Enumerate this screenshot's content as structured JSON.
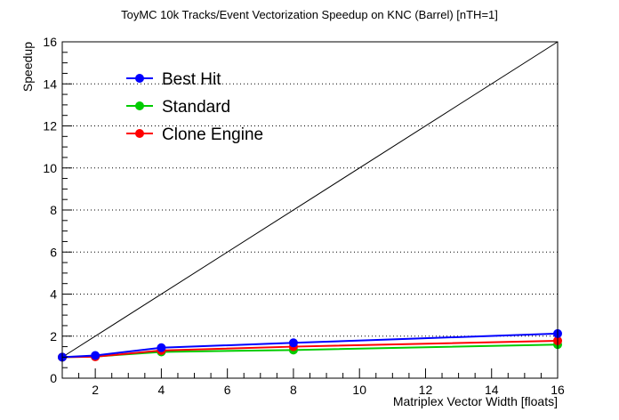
{
  "chart_data": {
    "type": "line",
    "title": "ToyMC 10k Tracks/Event Vectorization Speedup on KNC (Barrel) [nTH=1]",
    "xlabel": "Matriplex Vector Width [floats]",
    "ylabel": "Speedup",
    "xlim": [
      1,
      16
    ],
    "ylim": [
      0,
      16
    ],
    "x_ticks": [
      2,
      4,
      6,
      8,
      10,
      12,
      14,
      16
    ],
    "y_ticks": [
      0,
      2,
      4,
      6,
      8,
      10,
      12,
      14,
      16
    ],
    "grid": "horizontal dotted",
    "legend_position": "top-left",
    "reference_line": {
      "from": [
        1,
        1
      ],
      "to": [
        16,
        16
      ],
      "color": "#000000"
    },
    "x": [
      1,
      2,
      4,
      8,
      16
    ],
    "series": [
      {
        "name": "Best Hit",
        "color": "#0000ff",
        "values": [
          1.0,
          1.08,
          1.45,
          1.68,
          2.12
        ]
      },
      {
        "name": "Standard",
        "color": "#00cc00",
        "values": [
          1.0,
          1.03,
          1.25,
          1.34,
          1.6
        ]
      },
      {
        "name": "Clone Engine",
        "color": "#ff0000",
        "values": [
          1.0,
          1.02,
          1.32,
          1.5,
          1.78
        ]
      }
    ]
  }
}
